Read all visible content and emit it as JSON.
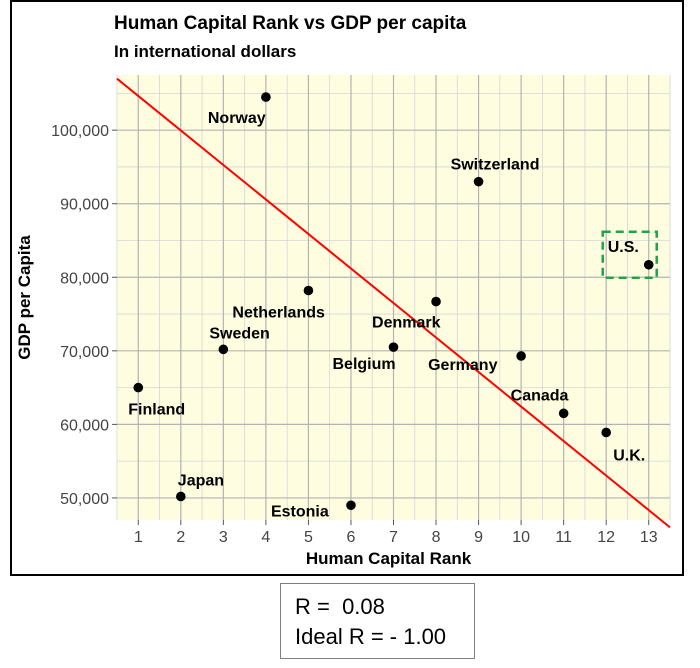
{
  "chart_data": {
    "type": "scatter",
    "title": "Human Capital Rank vs GDP per capita",
    "subtitle": "In international dollars",
    "xlabel": "Human Capital Rank",
    "ylabel": "GDP per Capita",
    "xlim": [
      0.5,
      13.5
    ],
    "ylim": [
      47000,
      107500
    ],
    "x_ticks": [
      "1",
      "2",
      "3",
      "4",
      "5",
      "6",
      "7",
      "8",
      "9",
      "10",
      "11",
      "12",
      "13"
    ],
    "y_ticks": [
      "50,000",
      "60,000",
      "70,000",
      "80,000",
      "90,000",
      "100,000"
    ],
    "y_tick_values": [
      50000,
      60000,
      70000,
      80000,
      90000,
      100000
    ],
    "grid": true,
    "background": "#fffde0",
    "point_color": "#000000",
    "trend_line": {
      "color": "#ff0000",
      "from": [
        0.5,
        107000
      ],
      "to": [
        13.5,
        46000
      ]
    },
    "highlight": {
      "label": "U.S.",
      "color": "#21a34a",
      "style": "dashed box"
    },
    "points": [
      {
        "label": "Finland",
        "x": 1,
        "y": 65000
      },
      {
        "label": "Japan",
        "x": 2,
        "y": 50200
      },
      {
        "label": "Sweden",
        "x": 3,
        "y": 70200
      },
      {
        "label": "Norway",
        "x": 4,
        "y": 104500
      },
      {
        "label": "Netherlands",
        "x": 5,
        "y": 78200
      },
      {
        "label": "Estonia",
        "x": 6,
        "y": 49000
      },
      {
        "label": "Belgium",
        "x": 7,
        "y": 70500
      },
      {
        "label": "Denmark",
        "x": 8,
        "y": 76700
      },
      {
        "label": "Switzerland",
        "x": 9,
        "y": 93000
      },
      {
        "label": "Germany",
        "x": 10,
        "y": 69300
      },
      {
        "label": "Canada",
        "x": 11,
        "y": 61500
      },
      {
        "label": "U.K.",
        "x": 12,
        "y": 58900
      },
      {
        "label": "U.S.",
        "x": 13,
        "y": 81700
      }
    ]
  },
  "stats": {
    "r_line": "R =  0.08",
    "ideal_line": "Ideal R = - 1.00"
  }
}
